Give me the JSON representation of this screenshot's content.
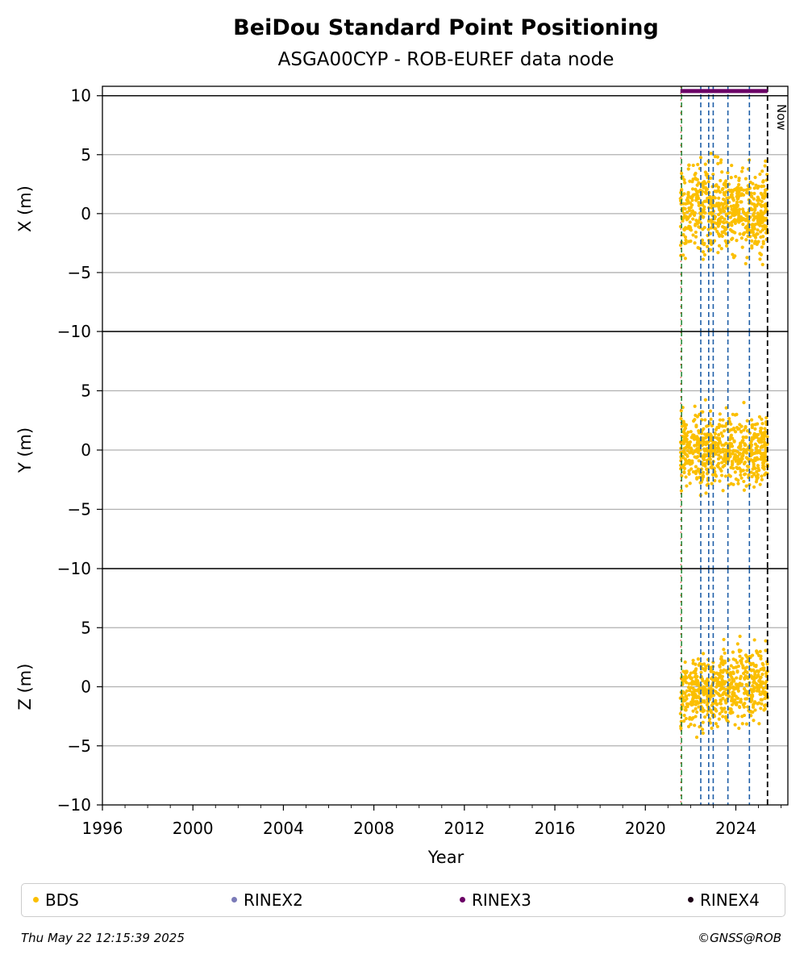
{
  "chart_data": {
    "type": "scatter",
    "title": "BeiDou Standard Point Positioning",
    "subtitle": "ASGA00CYP - ROB-EUREF data node",
    "xlabel": "Year",
    "xlim": [
      1996,
      2026.3
    ],
    "x_ticks": [
      1996,
      2000,
      2004,
      2008,
      2012,
      2016,
      2020,
      2024
    ],
    "grid": "horizontal",
    "panels": [
      {
        "ylabel": "X (m)",
        "ylim": [
          -10,
          10.8
        ],
        "y_ticks": [
          -10,
          -5,
          0,
          5,
          10
        ]
      },
      {
        "ylabel": "Y (m)",
        "ylim": [
          -10,
          10
        ],
        "y_ticks": [
          -10,
          -5,
          0,
          5
        ]
      },
      {
        "ylabel": "Z (m)",
        "ylim": [
          -10,
          10
        ],
        "y_ticks": [
          -10,
          -5,
          0,
          5
        ]
      }
    ],
    "series": [
      {
        "name": "BDS",
        "color": "#fbbf00",
        "x_range": [
          2021.55,
          2025.4
        ],
        "y_spread_m": 5
      },
      {
        "name": "RINEX2",
        "color": "#7b7bb8"
      },
      {
        "name": "RINEX3",
        "color": "#6b0066",
        "x_range": [
          2021.55,
          2025.4
        ],
        "y": 10.4
      },
      {
        "name": "RINEX4",
        "color": "#1c0316"
      }
    ],
    "vlines": {
      "blue": {
        "color": "#1f5fa8",
        "x": [
          2022.45,
          2022.8,
          2023.0,
          2023.65,
          2024.6
        ]
      },
      "start": {
        "color": "#2a8a3a",
        "x": 2021.6
      },
      "now": {
        "color": "#000000",
        "x": 2025.4,
        "label": "Now"
      }
    },
    "legend_placement": "bottom"
  },
  "footer": {
    "timestamp": "Thu May 22 12:15:39 2025",
    "credit": "©GNSS@ROB"
  }
}
